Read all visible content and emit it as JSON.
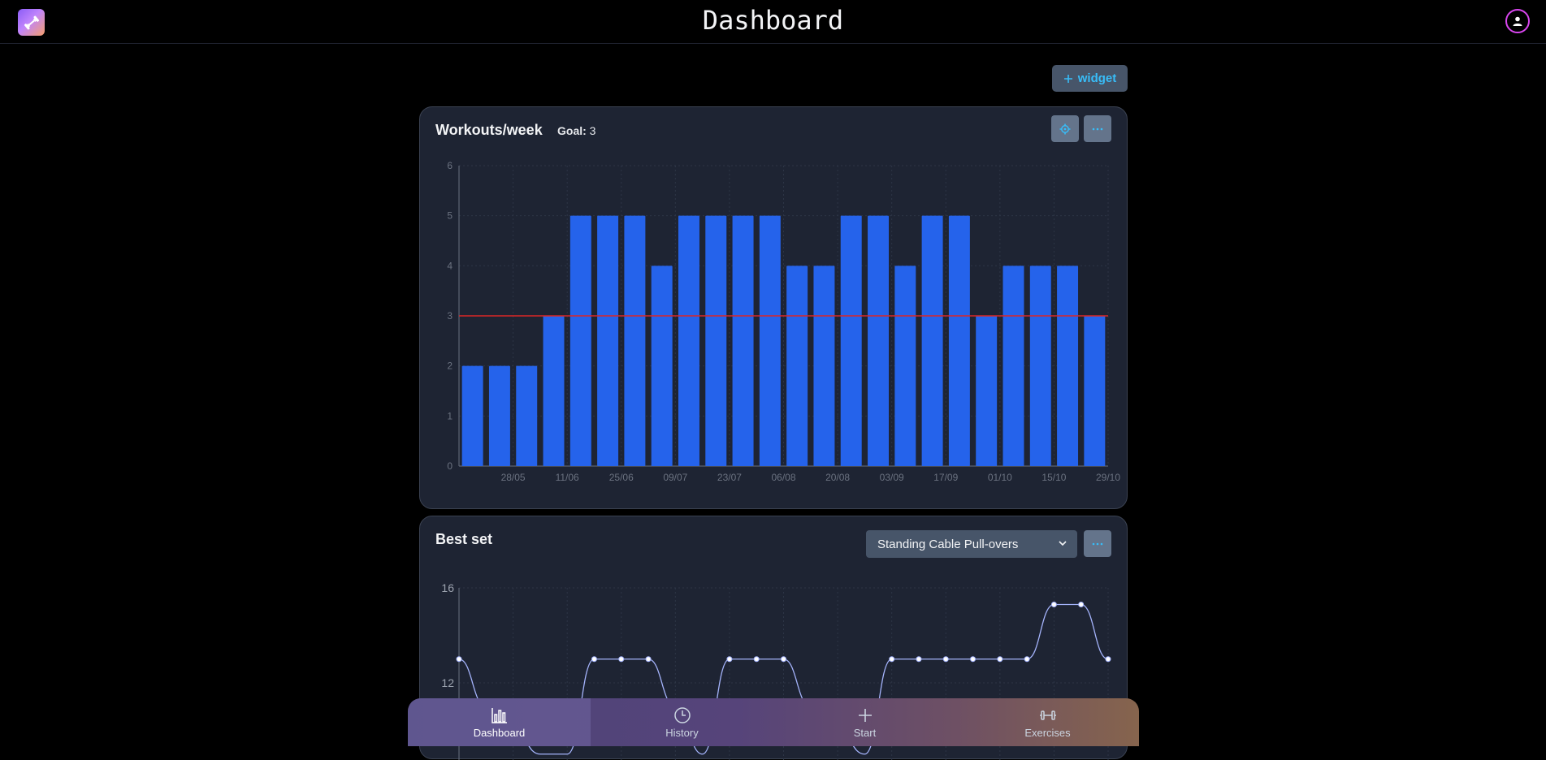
{
  "header": {
    "title": "Dashboard",
    "logo_icon": "dumbbell-icon",
    "profile_icon": "user-icon"
  },
  "toolbar": {
    "add_widget_label": "widget"
  },
  "widget1": {
    "title": "Workouts/week",
    "goal_label": "Goal:",
    "goal_value": "3",
    "settings_icon": "gear-icon",
    "menu_icon": "ellipsis-icon"
  },
  "widget2": {
    "title": "Best set",
    "select_value": "Standing Cable Pull-overs",
    "menu_icon": "ellipsis-icon"
  },
  "nav": {
    "items": [
      {
        "label": "Dashboard",
        "icon": "bar-chart-icon",
        "active": true
      },
      {
        "label": "History",
        "icon": "clock-icon",
        "active": false
      },
      {
        "label": "Start",
        "icon": "plus-icon",
        "active": false
      },
      {
        "label": "Exercises",
        "icon": "dumbbell-icon",
        "active": false
      }
    ]
  },
  "colors": {
    "background": "#000000",
    "card": "#1e2433",
    "bar": "#2563eb",
    "goal_line": "#dc2626",
    "line": "#a5b4fc",
    "accent": "#38bdf8"
  },
  "chart_data": [
    {
      "type": "bar",
      "title": "Workouts/week",
      "x_tick_labels": [
        "28/05",
        "11/06",
        "25/06",
        "09/07",
        "23/07",
        "06/08",
        "20/08",
        "03/09",
        "17/09",
        "01/10",
        "15/10",
        "29/10"
      ],
      "values": [
        2,
        2,
        2,
        3,
        5,
        5,
        5,
        4,
        5,
        5,
        5,
        5,
        4,
        4,
        5,
        5,
        4,
        5,
        5,
        3,
        4,
        4,
        4,
        3
      ],
      "goal": 3,
      "ylim": [
        0,
        6
      ],
      "yticks": [
        0,
        1,
        2,
        3,
        4,
        5,
        6
      ],
      "grid": true
    },
    {
      "type": "line",
      "title": "Best set",
      "series": [
        {
          "values": [
            13,
            11,
            10,
            9,
            9,
            13,
            13,
            13,
            11,
            9,
            13,
            13,
            13,
            11,
            10,
            9,
            13,
            13,
            13,
            13,
            13,
            13,
            15.3,
            15.3,
            13
          ]
        }
      ],
      "show_points": [
        true,
        false,
        false,
        false,
        false,
        true,
        true,
        true,
        false,
        false,
        true,
        true,
        true,
        false,
        false,
        false,
        true,
        true,
        true,
        true,
        true,
        true,
        true,
        true,
        true
      ],
      "visible_yticks": [
        12,
        16
      ],
      "grid": true
    }
  ]
}
